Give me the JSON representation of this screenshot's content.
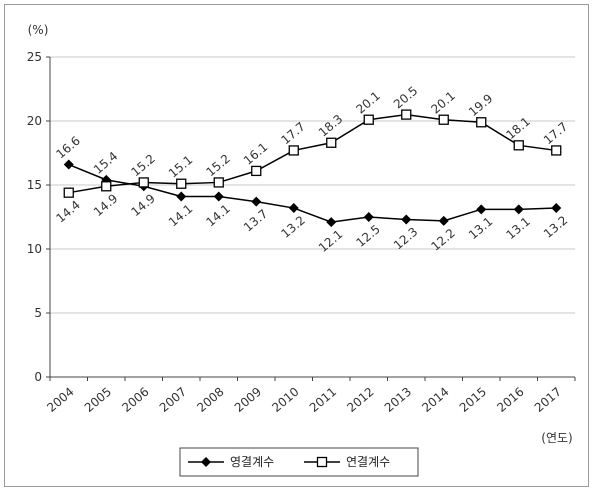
{
  "chart_data": {
    "type": "line",
    "y_unit": "(%)",
    "x_unit": "(연도)",
    "categories": [
      "2004",
      "2005",
      "2006",
      "2007",
      "2008",
      "2009",
      "2010",
      "2011",
      "2012",
      "2013",
      "2014",
      "2015",
      "2016",
      "2017"
    ],
    "ylim": [
      0,
      25
    ],
    "yticks": [
      0,
      5,
      10,
      15,
      20,
      25
    ],
    "grid": true,
    "legend_position": "bottom",
    "series": [
      {
        "name": "영결계수",
        "marker": "filled-diamond",
        "color": "#000000",
        "values": [
          16.6,
          15.4,
          14.9,
          14.1,
          14.1,
          13.7,
          13.2,
          12.1,
          12.5,
          12.3,
          12.2,
          13.1,
          13.1,
          13.2
        ]
      },
      {
        "name": "연결계수",
        "marker": "hollow-square",
        "color": "#000000",
        "values": [
          14.4,
          14.9,
          15.2,
          15.1,
          15.2,
          16.1,
          17.7,
          18.3,
          20.1,
          20.5,
          20.1,
          19.9,
          18.1,
          17.7
        ]
      }
    ]
  }
}
